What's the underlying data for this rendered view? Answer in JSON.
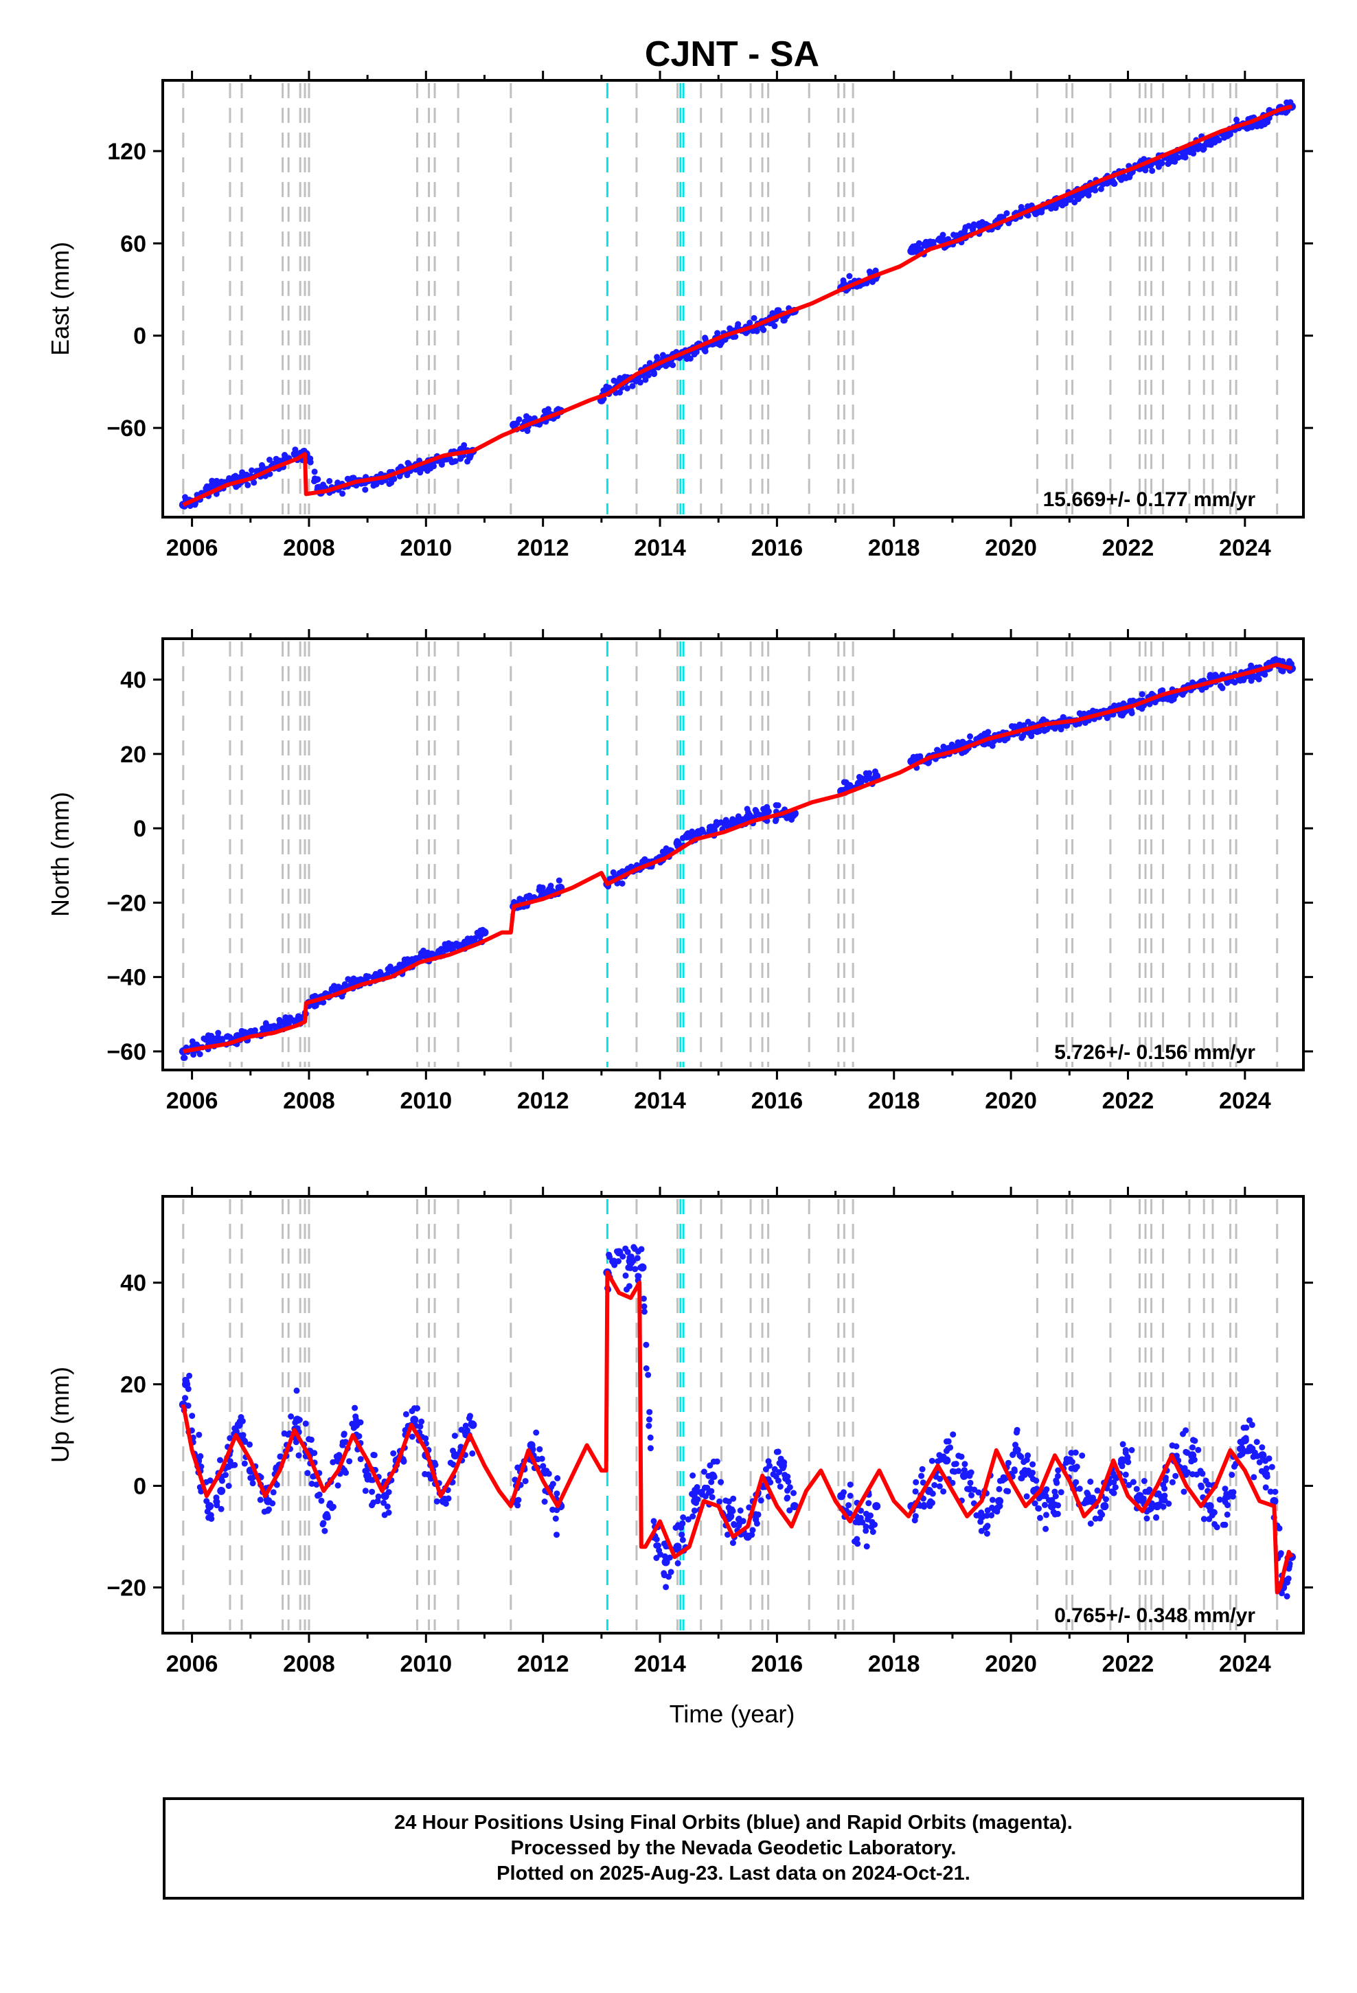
{
  "title": "CJNT - SA",
  "xlabel": "Time (year)",
  "colors": {
    "final_orbits": "#1a1aff",
    "fit": "#ff0000",
    "equipment_change": "#c0c0c0",
    "earthquake": "#00e5e5"
  },
  "chart_data": [
    {
      "type": "scatter",
      "component": "east",
      "ylabel": "East (mm)",
      "rate_text": "15.669+/- 0.177 mm/yr",
      "xlim": [
        2005.5,
        2025.0
      ],
      "ylim": [
        -118,
        166
      ],
      "xticks": [
        2006,
        2008,
        2010,
        2012,
        2014,
        2016,
        2018,
        2020,
        2022,
        2024
      ],
      "yticks": [
        -60,
        0,
        60,
        120
      ],
      "series": [
        {
          "role": "data",
          "color": "#1a1aff",
          "x": [
            2005.85,
            2006.0,
            2006.2,
            2006.4,
            2006.6,
            2006.8,
            2007.0,
            2007.2,
            2007.4,
            2007.6,
            2007.8,
            2007.95,
            2008.2,
            2008.5,
            2008.8,
            2009.1,
            2009.4,
            2009.7,
            2010.0,
            2010.3,
            2010.6,
            2010.8,
            2011.5,
            2011.8,
            2012.1,
            2012.3,
            2013.0,
            2013.1,
            2013.4,
            2013.7,
            2014.0,
            2014.3,
            2014.6,
            2014.9,
            2015.2,
            2015.5,
            2015.8,
            2016.1,
            2016.3,
            2017.1,
            2017.4,
            2017.7,
            2018.3,
            2018.6,
            2018.9,
            2019.2,
            2019.5,
            2019.8,
            2020.1,
            2020.4,
            2020.7,
            2021.0,
            2021.3,
            2021.6,
            2021.9,
            2022.2,
            2022.5,
            2022.8,
            2023.1,
            2023.4,
            2023.7,
            2024.0,
            2024.3,
            2024.6,
            2024.8
          ],
          "y": [
            -110,
            -108,
            -103,
            -98,
            -96,
            -94,
            -92,
            -88,
            -84,
            -80,
            -78,
            -77,
            -102,
            -98,
            -95,
            -94,
            -91,
            -87,
            -84,
            -80,
            -77,
            -75,
            -58,
            -56,
            -52,
            -49,
            -42,
            -36,
            -30,
            -25,
            -18,
            -13,
            -9,
            -5,
            1,
            5,
            9,
            13,
            16,
            31,
            35,
            39,
            55,
            58,
            61,
            65,
            70,
            73,
            78,
            82,
            85,
            89,
            95,
            100,
            104,
            109,
            113,
            117,
            121,
            126,
            132,
            137,
            140,
            148,
            149
          ]
        },
        {
          "role": "fit",
          "color": "#ff0000",
          "x": [
            2005.85,
            2006.2,
            2006.6,
            2007.0,
            2007.4,
            2007.8,
            2007.93,
            2007.95,
            2008.3,
            2008.8,
            2009.3,
            2009.8,
            2010.3,
            2010.8,
            2011.3,
            2011.8,
            2012.3,
            2012.8,
            2013.1,
            2013.6,
            2014.1,
            2014.6,
            2015.1,
            2015.6,
            2016.1,
            2016.6,
            2017.1,
            2017.6,
            2018.1,
            2018.6,
            2019.1,
            2019.6,
            2020.1,
            2020.6,
            2021.1,
            2021.6,
            2022.1,
            2022.6,
            2023.1,
            2023.6,
            2024.1,
            2024.6,
            2024.8
          ],
          "y": [
            -110,
            -104,
            -97,
            -93,
            -86,
            -80,
            -77,
            -103,
            -101,
            -95,
            -92,
            -85,
            -78,
            -75,
            -65,
            -57,
            -50,
            -42,
            -38,
            -25,
            -16,
            -8,
            0,
            6,
            14,
            21,
            30,
            38,
            45,
            56,
            62,
            70,
            78,
            86,
            94,
            102,
            109,
            117,
            125,
            133,
            139,
            147,
            149
          ]
        }
      ]
    },
    {
      "type": "scatter",
      "component": "north",
      "ylabel": "North (mm)",
      "rate_text": "5.726+/- 0.156 mm/yr",
      "xlim": [
        2005.5,
        2025.0
      ],
      "ylim": [
        -65,
        51
      ],
      "xticks": [
        2006,
        2008,
        2010,
        2012,
        2014,
        2016,
        2018,
        2020,
        2022,
        2024
      ],
      "yticks": [
        -60,
        -40,
        -20,
        0,
        20,
        40
      ],
      "series": [
        {
          "role": "data",
          "color": "#1a1aff",
          "x": [
            2005.85,
            2006.1,
            2006.4,
            2006.7,
            2007.0,
            2007.3,
            2007.6,
            2007.9,
            2008.0,
            2008.3,
            2008.6,
            2008.9,
            2009.2,
            2009.5,
            2009.8,
            2010.1,
            2010.4,
            2010.7,
            2011.0,
            2011.5,
            2011.8,
            2012.1,
            2012.3,
            2013.1,
            2013.4,
            2013.7,
            2014.0,
            2014.3,
            2014.6,
            2014.9,
            2015.2,
            2015.5,
            2015.8,
            2016.1,
            2016.3,
            2017.1,
            2017.4,
            2017.7,
            2018.3,
            2018.6,
            2018.9,
            2019.2,
            2019.5,
            2019.8,
            2020.1,
            2020.4,
            2020.7,
            2021.0,
            2021.3,
            2021.6,
            2021.9,
            2022.2,
            2022.5,
            2022.8,
            2023.1,
            2023.4,
            2023.7,
            2024.0,
            2024.3,
            2024.5,
            2024.8
          ],
          "y": [
            -60,
            -59,
            -57,
            -57,
            -55,
            -54,
            -52,
            -51,
            -47,
            -45,
            -43,
            -41,
            -40,
            -38,
            -36,
            -34,
            -32,
            -31,
            -28,
            -21,
            -19,
            -17,
            -16,
            -15,
            -12,
            -10,
            -8,
            -4,
            -2,
            0,
            1,
            3,
            4,
            4,
            4,
            10,
            12,
            14,
            18,
            19,
            21,
            22,
            24,
            25,
            26,
            27,
            28,
            29,
            30,
            31,
            32,
            34,
            35,
            36,
            38,
            39,
            40,
            41,
            42,
            45,
            43
          ]
        },
        {
          "role": "fit",
          "color": "#ff0000",
          "x": [
            2005.85,
            2006.2,
            2006.6,
            2007.0,
            2007.4,
            2007.8,
            2007.93,
            2007.95,
            2008.4,
            2008.9,
            2009.4,
            2009.9,
            2010.4,
            2010.9,
            2011.3,
            2011.45,
            2011.5,
            2012.0,
            2012.5,
            2013.0,
            2013.1,
            2013.6,
            2014.1,
            2014.6,
            2015.1,
            2015.6,
            2016.1,
            2016.6,
            2017.1,
            2017.6,
            2018.1,
            2018.6,
            2019.1,
            2019.6,
            2020.1,
            2020.6,
            2021.1,
            2021.6,
            2022.1,
            2022.6,
            2023.1,
            2023.6,
            2024.1,
            2024.55,
            2024.8
          ],
          "y": [
            -60,
            -59,
            -58,
            -56,
            -55,
            -53,
            -52,
            -47,
            -45,
            -42,
            -40,
            -36,
            -34,
            -31,
            -28,
            -28,
            -21,
            -19,
            -16,
            -12,
            -15,
            -11,
            -8,
            -3,
            -1,
            2,
            4,
            7,
            9,
            12,
            15,
            19,
            21,
            24,
            26,
            28,
            29,
            31,
            33,
            36,
            38,
            40,
            42,
            44,
            43
          ]
        }
      ]
    },
    {
      "type": "scatter",
      "component": "up",
      "ylabel": "Up (mm)",
      "rate_text": "0.765+/- 0.348 mm/yr",
      "xlim": [
        2005.5,
        2025.0
      ],
      "ylim": [
        -29,
        57
      ],
      "xticks": [
        2006,
        2008,
        2010,
        2012,
        2014,
        2016,
        2018,
        2020,
        2022,
        2024
      ],
      "yticks": [
        -20,
        0,
        20,
        40
      ],
      "series": [
        {
          "role": "data",
          "color": "#1a1aff",
          "x": [
            2005.85,
            2005.9,
            2006.1,
            2006.3,
            2006.5,
            2006.8,
            2007.0,
            2007.3,
            2007.5,
            2007.8,
            2008.0,
            2008.3,
            2008.5,
            2008.8,
            2009.0,
            2009.3,
            2009.5,
            2009.8,
            2010.0,
            2010.3,
            2010.5,
            2010.8,
            2011.5,
            2011.8,
            2012.1,
            2012.3,
            2013.1,
            2013.3,
            2013.5,
            2013.7,
            2013.9,
            2014.1,
            2014.3,
            2014.6,
            2014.9,
            2015.2,
            2015.5,
            2015.8,
            2016.1,
            2016.3,
            2017.1,
            2017.4,
            2017.7,
            2018.3,
            2018.6,
            2018.9,
            2019.2,
            2019.5,
            2019.8,
            2020.1,
            2020.4,
            2020.7,
            2021.0,
            2021.3,
            2021.6,
            2021.9,
            2022.2,
            2022.5,
            2022.8,
            2023.1,
            2023.4,
            2023.7,
            2024.0,
            2024.3,
            2024.5,
            2024.65,
            2024.8
          ],
          "y": [
            16,
            20,
            5,
            -4,
            -1,
            12,
            3,
            -3,
            4,
            13,
            6,
            -6,
            5,
            12,
            2,
            -2,
            5,
            13,
            6,
            -3,
            6,
            12,
            -3,
            8,
            -1,
            -4,
            42,
            46,
            44,
            43,
            -10,
            -15,
            -12,
            -3,
            2,
            -6,
            -10,
            0,
            4,
            -4,
            -2,
            -7,
            -4,
            -4,
            -1,
            5,
            2,
            -6,
            -3,
            7,
            -1,
            -4,
            5,
            -3,
            -4,
            5,
            -2,
            -4,
            5,
            6,
            -4,
            -2,
            9,
            6,
            -3,
            -20,
            -14
          ]
        },
        {
          "role": "fit",
          "color": "#ff0000",
          "x": [
            2005.85,
            2006.0,
            2006.25,
            2006.5,
            2006.75,
            2007.0,
            2007.25,
            2007.5,
            2007.75,
            2008.0,
            2008.25,
            2008.5,
            2008.75,
            2009.0,
            2009.25,
            2009.5,
            2009.75,
            2010.0,
            2010.25,
            2010.5,
            2010.75,
            2011.0,
            2011.25,
            2011.45,
            2011.75,
            2012.0,
            2012.25,
            2012.5,
            2012.75,
            2013.0,
            2013.08,
            2013.1,
            2013.3,
            2013.5,
            2013.65,
            2013.68,
            2013.75,
            2014.0,
            2014.25,
            2014.5,
            2014.75,
            2015.0,
            2015.25,
            2015.5,
            2015.75,
            2016.0,
            2016.25,
            2016.5,
            2016.75,
            2017.0,
            2017.25,
            2017.5,
            2017.75,
            2018.0,
            2018.25,
            2018.5,
            2018.75,
            2019.0,
            2019.25,
            2019.5,
            2019.75,
            2020.0,
            2020.25,
            2020.5,
            2020.75,
            2021.0,
            2021.25,
            2021.5,
            2021.75,
            2022.0,
            2022.25,
            2022.5,
            2022.75,
            2023.0,
            2023.25,
            2023.5,
            2023.75,
            2024.0,
            2024.25,
            2024.5,
            2024.55,
            2024.6,
            2024.75,
            2024.8
          ],
          "y": [
            16,
            7,
            -2,
            3,
            10,
            5,
            -2,
            3,
            11,
            6,
            -1,
            3,
            10,
            5,
            -1,
            4,
            12,
            7,
            -2,
            3,
            10,
            4,
            -1,
            -4,
            7,
            1,
            -4,
            2,
            8,
            3,
            3,
            42,
            38,
            37,
            40,
            -12,
            -12,
            -7,
            -14,
            -12,
            -3,
            -4,
            -10,
            -8,
            2,
            -4,
            -8,
            -1,
            3,
            -3,
            -7,
            -2,
            3,
            -3,
            -6,
            -1,
            4,
            -1,
            -6,
            -3,
            7,
            1,
            -4,
            -1,
            6,
            1,
            -6,
            -3,
            5,
            -2,
            -5,
            0,
            6,
            0,
            -4,
            0,
            7,
            3,
            -3,
            -4,
            -21,
            -20,
            -13,
            -14
          ]
        }
      ]
    }
  ],
  "vertical_markers": {
    "equipment_change_years": [
      2005.85,
      2006.65,
      2006.85,
      2007.55,
      2007.65,
      2007.85,
      2007.93,
      2008.0,
      2009.85,
      2010.05,
      2010.15,
      2010.55,
      2011.45,
      2013.6,
      2014.3,
      2014.7,
      2015.05,
      2015.55,
      2015.75,
      2015.85,
      2016.55,
      2017.05,
      2017.15,
      2017.3,
      2020.45,
      2020.95,
      2021.05,
      2021.7,
      2022.2,
      2022.3,
      2022.4,
      2022.6,
      2023.05,
      2023.3,
      2023.45,
      2023.75,
      2023.85,
      2024.55
    ],
    "earthquake_years": [
      2013.1,
      2014.35,
      2014.4
    ]
  },
  "footer": {
    "line1": "24 Hour Positions Using Final Orbits (blue) and Rapid Orbits (magenta).",
    "line2": "Processed by the Nevada Geodetic Laboratory.",
    "line3": "Plotted on 2025-Aug-23. Last data on 2024-Oct-21."
  }
}
